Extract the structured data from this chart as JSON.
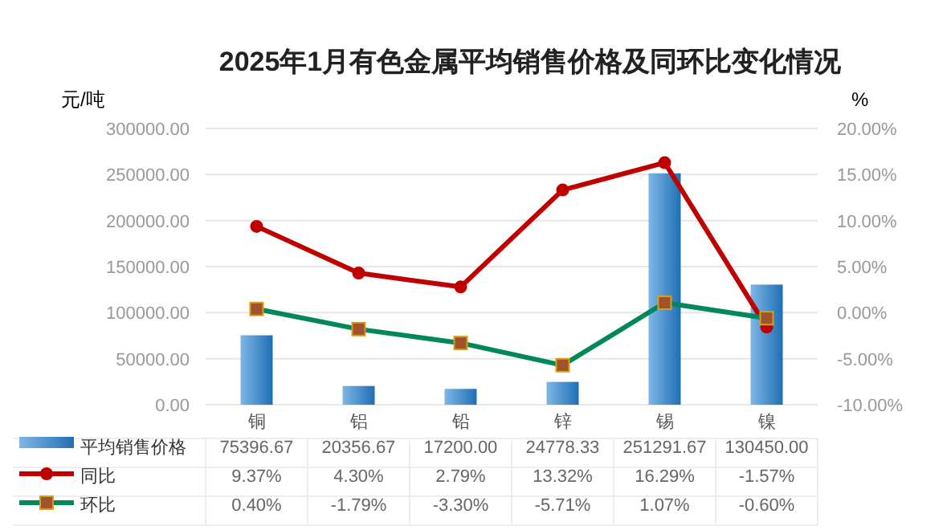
{
  "chart_data": {
    "type": "bar",
    "title": "2025年1月有色金属平均销售价格及同环比变化情况",
    "ylabel": "元/吨",
    "y2label": "%",
    "categories": [
      "铜",
      "铝",
      "铅",
      "锌",
      "锡",
      "镍"
    ],
    "series": [
      {
        "name": "平均销售价格",
        "color": "#1f6fb5",
        "values": [
          75396.67,
          20356.67,
          17200.0,
          24778.33,
          251291.67,
          130450.0
        ],
        "value_labels": [
          "75396.67",
          "20356.67",
          "17200.00",
          "24778.33",
          "251291.67",
          "130450.00"
        ]
      },
      {
        "name": "同比",
        "type": "line",
        "axis": "y2",
        "color": "#c00000",
        "marker": "circle",
        "values": [
          9.37,
          4.3,
          2.79,
          13.32,
          16.29,
          -1.57
        ],
        "value_labels": [
          "9.37%",
          "4.30%",
          "2.79%",
          "13.32%",
          "16.29%",
          "-1.57%"
        ]
      },
      {
        "name": "环比",
        "type": "line",
        "axis": "y2",
        "color": "#00875a",
        "marker": "square",
        "values": [
          0.4,
          -1.79,
          -3.3,
          -5.71,
          1.07,
          -0.6
        ],
        "value_labels": [
          "0.40%",
          "-1.79%",
          "-3.30%",
          "-5.71%",
          "1.07%",
          "-0.60%"
        ]
      }
    ],
    "ylim": [
      0,
      300000
    ],
    "yticks": [
      {
        "value": 0,
        "label": "0.00"
      },
      {
        "value": 50000,
        "label": "50000.00"
      },
      {
        "value": 100000,
        "label": "100000.00"
      },
      {
        "value": 150000,
        "label": "150000.00"
      },
      {
        "value": 200000,
        "label": "200000.00"
      },
      {
        "value": 250000,
        "label": "250000.00"
      },
      {
        "value": 300000,
        "label": "300000.00"
      }
    ],
    "y2lim": [
      -10,
      20
    ],
    "y2ticks": [
      {
        "value": -10,
        "label": "-10.00%"
      },
      {
        "value": -5,
        "label": "-5.00%"
      },
      {
        "value": 0,
        "label": "0.00%"
      },
      {
        "value": 5,
        "label": "5.00%"
      },
      {
        "value": 10,
        "label": "10.00%"
      },
      {
        "value": 15,
        "label": "15.00%"
      },
      {
        "value": 20,
        "label": "20.00%"
      }
    ],
    "grid": "y",
    "legend": "bottom"
  }
}
